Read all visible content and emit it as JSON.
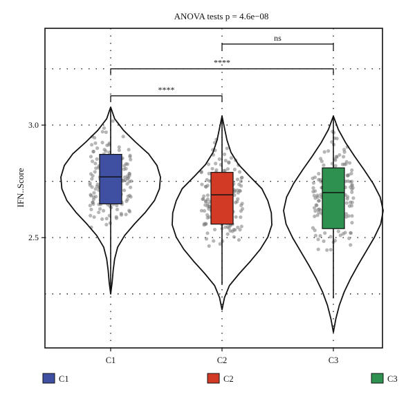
{
  "chart_data": {
    "type": "violin",
    "title": "ANOVA tests p = 4.6e−08",
    "xlabel": "",
    "ylabel": "IFN..Score",
    "categories": [
      "C1",
      "C2",
      "C3"
    ],
    "yticks": [
      "2.5",
      "3.0"
    ],
    "ylim": [
      2.01,
      3.43
    ],
    "grid": true,
    "legend_position": "bottom",
    "colors": {
      "C1": "#3f50a3",
      "C2": "#d23a26",
      "C3": "#2e9150"
    },
    "series": [
      {
        "name": "C1",
        "violin_range": [
          2.25,
          3.08
        ],
        "box": {
          "whisker_low": 2.25,
          "q1": 2.65,
          "median": 2.77,
          "q3": 2.87,
          "whisker_high": 3.08
        }
      },
      {
        "name": "C2",
        "violin_range": [
          2.18,
          3.04
        ],
        "box": {
          "whisker_low": 2.29,
          "q1": 2.56,
          "median": 2.69,
          "q3": 2.79,
          "whisker_high": 3.04
        }
      },
      {
        "name": "C3",
        "violin_range": [
          2.08,
          3.04
        ],
        "box": {
          "whisker_low": 2.23,
          "q1": 2.54,
          "median": 2.7,
          "q3": 2.81,
          "whisker_high": 3.04
        }
      }
    ],
    "comparisons": [
      {
        "groups": [
          "C1",
          "C2"
        ],
        "y": 3.13,
        "label": "****"
      },
      {
        "groups": [
          "C1",
          "C3"
        ],
        "y": 3.25,
        "label": "****"
      },
      {
        "groups": [
          "C2",
          "C3"
        ],
        "y": 3.36,
        "label": "ns"
      }
    ],
    "legend": [
      "C1",
      "C2",
      "C3"
    ]
  }
}
